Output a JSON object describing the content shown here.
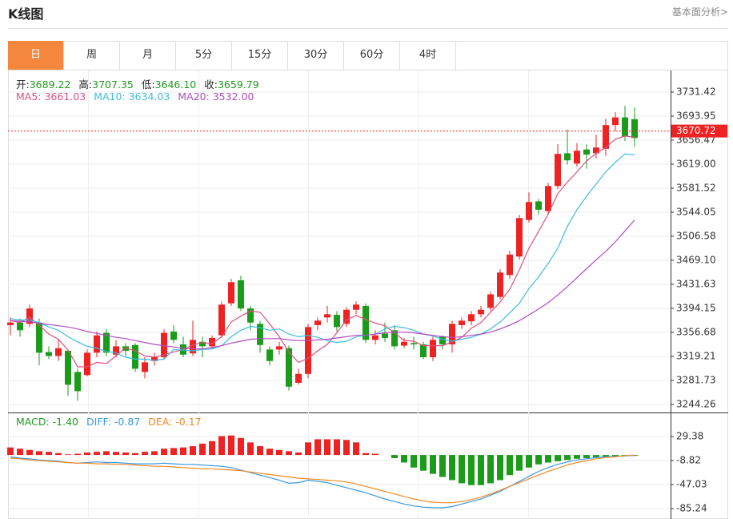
{
  "header": {
    "title": "K线图",
    "link": "基本面分析>"
  },
  "tabs": [
    "日",
    "周",
    "月",
    "5分",
    "15分",
    "30分",
    "60分",
    "4时"
  ],
  "active_tab": 0,
  "chart_data": [
    {
      "type": "candlestick",
      "info": [
        {
          "label": "开:",
          "value": "3689.22"
        },
        {
          "label": "高:",
          "value": "3707.35"
        },
        {
          "label": "低:",
          "value": "3646.10"
        },
        {
          "label": "收:",
          "value": "3659.79"
        }
      ],
      "info_color": "#1a9c1a",
      "up_color": "#ee2222",
      "down_color": "#1a9c1a",
      "open": [
        3368,
        3372,
        3370,
        3372,
        3326,
        3320,
        3328,
        3295,
        3290,
        3325,
        3356,
        3322,
        3335,
        3337,
        3295,
        3312,
        3318,
        3358,
        3338,
        3324,
        3342,
        3335,
        3352,
        3402,
        3438,
        3394,
        3370,
        3330,
        3330,
        3332,
        3278,
        3292,
        3368,
        3380,
        3384,
        3370,
        3392,
        3398,
        3345,
        3355,
        3360,
        3336,
        3340,
        3338,
        3318,
        3350,
        3338,
        3368,
        3374,
        3385,
        3395,
        3412,
        3446,
        3475,
        3532,
        3561,
        3546,
        3585,
        3636,
        3620,
        3642,
        3636,
        3643,
        3680,
        3692,
        3689.22
      ],
      "high": [
        3380,
        3378,
        3400,
        3378,
        3335,
        3345,
        3330,
        3300,
        3330,
        3358,
        3362,
        3345,
        3340,
        3340,
        3318,
        3325,
        3362,
        3368,
        3350,
        3375,
        3350,
        3352,
        3405,
        3440,
        3445,
        3398,
        3375,
        3335,
        3342,
        3336,
        3300,
        3370,
        3380,
        3398,
        3390,
        3396,
        3405,
        3402,
        3360,
        3372,
        3368,
        3348,
        3350,
        3342,
        3350,
        3352,
        3375,
        3380,
        3390,
        3398,
        3420,
        3455,
        3484,
        3540,
        3575,
        3565,
        3590,
        3650,
        3673,
        3652,
        3650,
        3665,
        3690,
        3700,
        3710,
        3707.35
      ],
      "low": [
        3352,
        3350,
        3365,
        3305,
        3315,
        3312,
        3258,
        3250,
        3288,
        3318,
        3320,
        3318,
        3320,
        3295,
        3285,
        3305,
        3314,
        3340,
        3318,
        3320,
        3318,
        3330,
        3348,
        3398,
        3390,
        3360,
        3325,
        3305,
        3322,
        3266,
        3275,
        3285,
        3360,
        3372,
        3358,
        3365,
        3385,
        3340,
        3338,
        3342,
        3330,
        3332,
        3330,
        3315,
        3312,
        3330,
        3325,
        3362,
        3368,
        3380,
        3390,
        3408,
        3440,
        3470,
        3528,
        3540,
        3540,
        3580,
        3618,
        3615,
        3612,
        3628,
        3632,
        3670,
        3655,
        3646.1
      ],
      "close": [
        3372,
        3360,
        3394,
        3325,
        3320,
        3332,
        3275,
        3265,
        3325,
        3352,
        3325,
        3335,
        3328,
        3300,
        3310,
        3318,
        3356,
        3345,
        3322,
        3345,
        3335,
        3348,
        3400,
        3435,
        3394,
        3372,
        3337,
        3312,
        3335,
        3272,
        3292,
        3365,
        3375,
        3385,
        3365,
        3392,
        3400,
        3345,
        3352,
        3348,
        3335,
        3342,
        3338,
        3318,
        3345,
        3338,
        3370,
        3375,
        3385,
        3392,
        3416,
        3450,
        3478,
        3535,
        3560,
        3548,
        3585,
        3635,
        3625,
        3640,
        3634,
        3645,
        3680,
        3692,
        3662,
        3659.79
      ],
      "series": [
        {
          "name": "MA5: 3661.03",
          "color": "#e0507e",
          "values": [
            3375,
            3372,
            3380,
            3368,
            3354,
            3346,
            3329,
            3303,
            3303,
            3310,
            3308,
            3320,
            3333,
            3328,
            3320,
            3318,
            3322,
            3326,
            3330,
            3337,
            3341,
            3339,
            3350,
            3373,
            3382,
            3390,
            3388,
            3370,
            3350,
            3326,
            3310,
            3316,
            3328,
            3338,
            3356,
            3376,
            3383,
            3377,
            3371,
            3367,
            3356,
            3344,
            3343,
            3336,
            3336,
            3336,
            3342,
            3349,
            3363,
            3372,
            3388,
            3404,
            3424,
            3454,
            3488,
            3514,
            3541,
            3573,
            3591,
            3607,
            3624,
            3636,
            3645,
            3658,
            3663,
            3661.03
          ]
        },
        {
          "name": "MA10: 3634.03",
          "color": "#3dbde0",
          "values": [
            3378,
            3376,
            3376,
            3372,
            3365,
            3360,
            3350,
            3342,
            3335,
            3332,
            3327,
            3325,
            3318,
            3315,
            3315,
            3313,
            3315,
            3330,
            3329,
            3328,
            3330,
            3331,
            3336,
            3350,
            3360,
            3366,
            3364,
            3360,
            3362,
            3354,
            3350,
            3352,
            3349,
            3344,
            3341,
            3343,
            3350,
            3352,
            3354,
            3362,
            3366,
            3364,
            3360,
            3354,
            3351,
            3346,
            3343,
            3346,
            3349,
            3354,
            3362,
            3373,
            3387,
            3402,
            3425,
            3443,
            3464,
            3488,
            3522,
            3548,
            3569,
            3588,
            3607,
            3622,
            3635,
            3634.03
          ]
        },
        {
          "name": "MA20: 3532.00",
          "color": "#b04cc0",
          "values": [
            3375,
            3374,
            3373,
            3371,
            3369,
            3367,
            3365,
            3362,
            3358,
            3355,
            3352,
            3349,
            3347,
            3344,
            3341,
            3338,
            3336,
            3334,
            3332,
            3331,
            3331,
            3333,
            3336,
            3340,
            3343,
            3346,
            3347,
            3347,
            3347,
            3345,
            3344,
            3344,
            3345,
            3346,
            3348,
            3350,
            3352,
            3352,
            3354,
            3356,
            3357,
            3357,
            3356,
            3354,
            3352,
            3350,
            3349,
            3350,
            3352,
            3354,
            3357,
            3362,
            3368,
            3375,
            3384,
            3393,
            3403,
            3415,
            3428,
            3442,
            3456,
            3470,
            3483,
            3498,
            3515,
            3532.0
          ]
        }
      ],
      "ylim": [
        3231.77,
        3765.15
      ],
      "yticks": [
        3731.42,
        3693.95,
        3656.47,
        {
          "value": 3619,
          "label": "3619.00"
        },
        3581.52,
        3544.05,
        3506.58,
        {
          "value": 3469.1,
          "label": "3469.10"
        },
        3431.63,
        3394.15,
        3356.68,
        3319.21,
        3281.73,
        3244.26
      ],
      "last_price": 3670.72,
      "last_price_color": "#ee2222",
      "grid": true
    },
    {
      "type": "macd",
      "up_color": "#ee2222",
      "down_color": "#1a9c1a",
      "series": [
        {
          "name": "MACD: -1.40",
          "kind": "bar",
          "color": "#1a9c1a",
          "values": [
            12,
            10,
            8,
            6,
            5,
            3,
            1,
            2,
            4,
            5,
            6,
            5,
            4,
            3,
            5,
            6,
            10,
            11,
            12,
            14,
            18,
            22,
            30,
            31,
            27,
            20,
            14,
            10,
            8,
            6,
            4,
            20,
            25,
            25,
            25,
            24,
            20,
            3,
            2,
            0,
            -5,
            -12,
            -20,
            -25,
            -30,
            -35,
            -40,
            -45,
            -48,
            -48,
            -45,
            -40,
            -32,
            -25,
            -20,
            -15,
            -12,
            -10,
            -8,
            -6,
            -5,
            -4,
            -3,
            -2,
            -1.5,
            -1.4
          ]
        },
        {
          "name": "DIFF: -0.87",
          "kind": "line",
          "color": "#3a98e0",
          "values": [
            -3,
            -5,
            -6,
            -8,
            -9,
            -10,
            -12,
            -13,
            -12,
            -11,
            -12,
            -12,
            -13,
            -14,
            -14,
            -14,
            -13,
            -14,
            -15,
            -15,
            -16,
            -17,
            -18,
            -20,
            -24,
            -28,
            -32,
            -36,
            -40,
            -45,
            -44,
            -40,
            -42,
            -44,
            -48,
            -52,
            -56,
            -60,
            -65,
            -70,
            -74,
            -78,
            -81,
            -83,
            -84,
            -84,
            -82,
            -78,
            -74,
            -70,
            -64,
            -58,
            -50,
            -42,
            -34,
            -26,
            -20,
            -15,
            -11,
            -8,
            -6,
            -4,
            -3,
            -2,
            -1.5,
            -0.87
          ]
        },
        {
          "name": "DEA: -0.17",
          "kind": "line",
          "color": "#f08a24",
          "values": [
            -5,
            -6,
            -8,
            -9,
            -10,
            -11,
            -12,
            -13,
            -13,
            -14,
            -14,
            -15,
            -15,
            -16,
            -17,
            -18,
            -18,
            -19,
            -20,
            -21,
            -22,
            -22,
            -23,
            -24,
            -25,
            -27,
            -29,
            -31,
            -33,
            -35,
            -37,
            -38,
            -39,
            -40,
            -41,
            -43,
            -46,
            -50,
            -54,
            -58,
            -62,
            -66,
            -70,
            -73,
            -75,
            -76,
            -76,
            -74,
            -71,
            -67,
            -62,
            -56,
            -50,
            -44,
            -38,
            -32,
            -26,
            -21,
            -16,
            -12,
            -9,
            -6,
            -4,
            -3,
            -1,
            -0.17
          ]
        }
      ],
      "ylim": [
        -97.98,
        66.31
      ],
      "yticks": [
        29.38,
        -8.82,
        -47.03,
        -85.24
      ],
      "grid": true
    }
  ]
}
